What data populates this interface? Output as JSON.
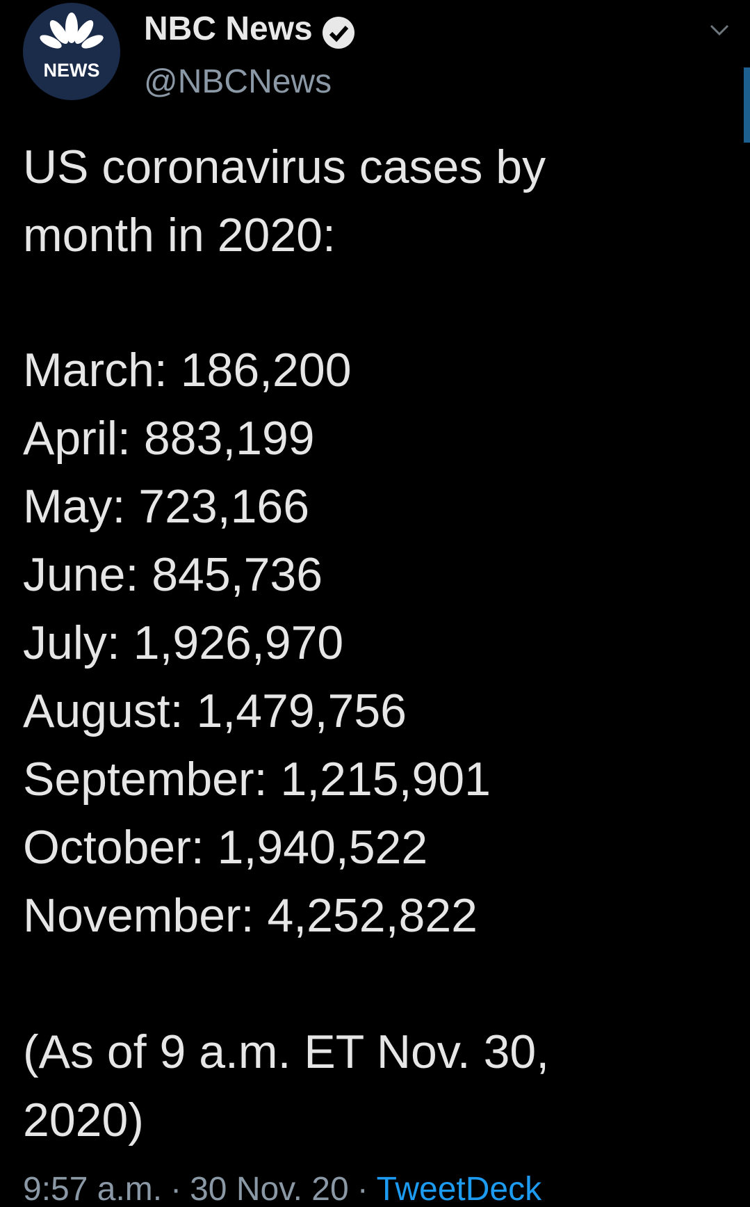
{
  "logo": {
    "text": "NEWS"
  },
  "header": {
    "name": "NBC News",
    "handle": "@NBCNews"
  },
  "tweet": {
    "intro": [
      "US coronavirus cases by",
      "month in 2020:"
    ],
    "counts": [
      "March: 186,200",
      "April: 883,199",
      "May: 723,166",
      "June: 845,736",
      "July: 1,926,970",
      "August: 1,479,756",
      "September: 1,215,901",
      "October: 1,940,522",
      "November: 4,252,822"
    ],
    "note": [
      "(As of 9 a.m. ET Nov. 30,",
      "2020)"
    ]
  },
  "footer": {
    "time": "9:57 a.m.",
    "separator": "·",
    "date": "30 Nov. 20",
    "source": "TweetDeck"
  }
}
